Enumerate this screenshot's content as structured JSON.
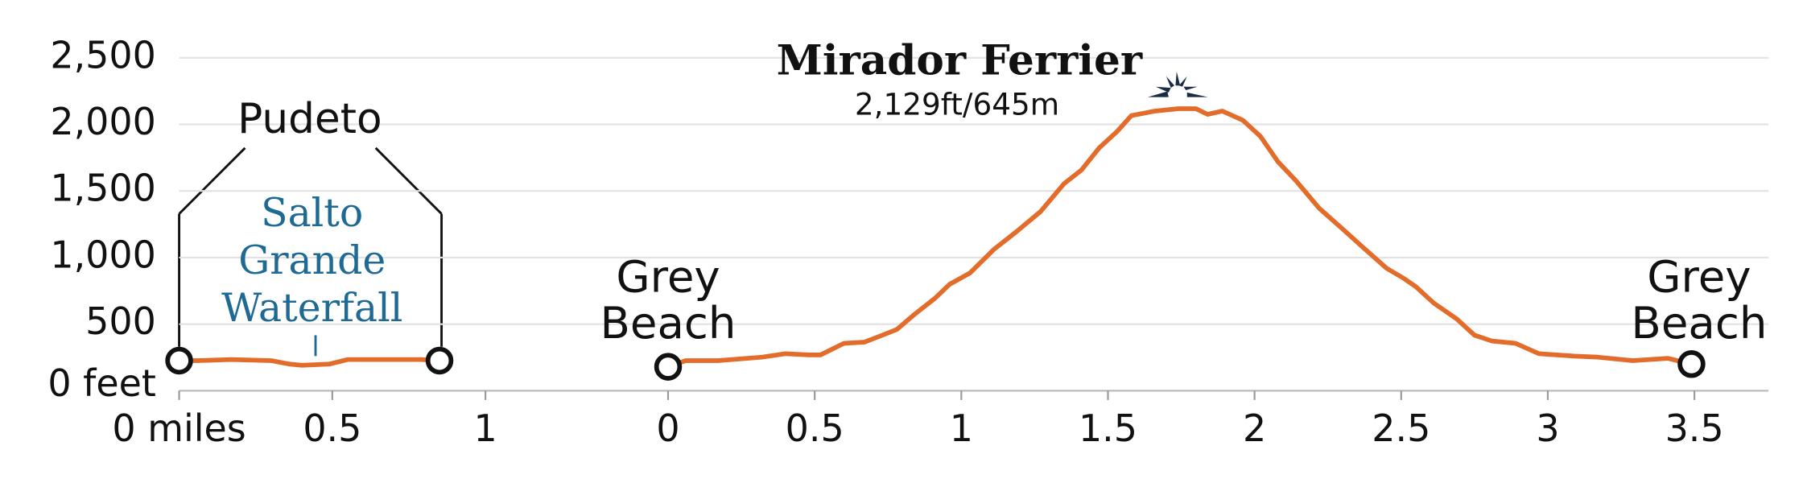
{
  "chart_data": [
    {
      "type": "line",
      "x": [
        0,
        0.06,
        0.17,
        0.3,
        0.36,
        0.4,
        0.49,
        0.55,
        0.62,
        0.79,
        0.85
      ],
      "series": [
        {
          "color": "#e36c2b",
          "values": [
            226,
            226,
            234,
            226,
            200,
            191,
            200,
            234,
            234,
            234,
            226
          ]
        }
      ],
      "xlim": [
        0,
        1
      ],
      "xticks": [
        {
          "value": 0,
          "label": "0 miles"
        },
        0.5,
        1
      ],
      "ylim": [
        0,
        2500
      ],
      "yticks": [
        {
          "value": 0,
          "label": "0 feet"
        },
        {
          "value": 500,
          "label": "500"
        },
        {
          "value": 1000,
          "label": "1,000"
        },
        {
          "value": 1500,
          "label": "1,500"
        },
        {
          "value": 2000,
          "label": "2,000"
        },
        {
          "value": 2500,
          "label": "2,500"
        }
      ],
      "grid": true,
      "annotations": [
        {
          "lines": [
            "Pudeto"
          ]
        },
        {
          "lines": [
            "Salto",
            "Grande",
            "Waterfall"
          ],
          "color": "#1f6a94"
        }
      ]
    },
    {
      "type": "line",
      "x": [
        0,
        0.06,
        0.17,
        0.32,
        0.4,
        0.48,
        0.52,
        0.6,
        0.67,
        0.72,
        0.78,
        0.84,
        0.91,
        0.96,
        1.03,
        1.11,
        1.19,
        1.27,
        1.35,
        1.41,
        1.47,
        1.53,
        1.58,
        1.62,
        1.66,
        1.74,
        1.8,
        1.84,
        1.89,
        1.96,
        2.02,
        2.08,
        2.14,
        2.22,
        2.3,
        2.37,
        2.45,
        2.51,
        2.55,
        2.61,
        2.69,
        2.75,
        2.81,
        2.89,
        2.97,
        3.03,
        3.09,
        3.17,
        3.29,
        3.41,
        3.49
      ],
      "series": [
        {
          "color": "#e36c2b",
          "values": [
            180,
            226,
            226,
            252,
            278,
            269,
            269,
            356,
            365,
            408,
            460,
            573,
            694,
            799,
            885,
            1059,
            1198,
            1345,
            1554,
            1658,
            1823,
            1944,
            2066,
            2083,
            2100,
            2118,
            2118,
            2075,
            2100,
            2031,
            1910,
            1719,
            1580,
            1371,
            1215,
            1076,
            920,
            842,
            781,
            660,
            538,
            417,
            373,
            356,
            278,
            269,
            260,
            252,
            226,
            243,
            200
          ]
        }
      ],
      "xlim": [
        0,
        3.75
      ],
      "xticks": [
        0,
        0.5,
        1,
        1.5,
        2,
        2.5,
        3,
        3.5
      ],
      "ylim": [
        0,
        2500
      ],
      "annotations": [
        {
          "lines": [
            "Grey",
            "Beach"
          ]
        },
        {
          "lines": [
            "Mirador Ferrier"
          ]
        },
        {
          "lines": [
            "2,129ft/645m"
          ]
        },
        {
          "lines": [
            "Grey",
            "Beach"
          ]
        }
      ]
    }
  ]
}
